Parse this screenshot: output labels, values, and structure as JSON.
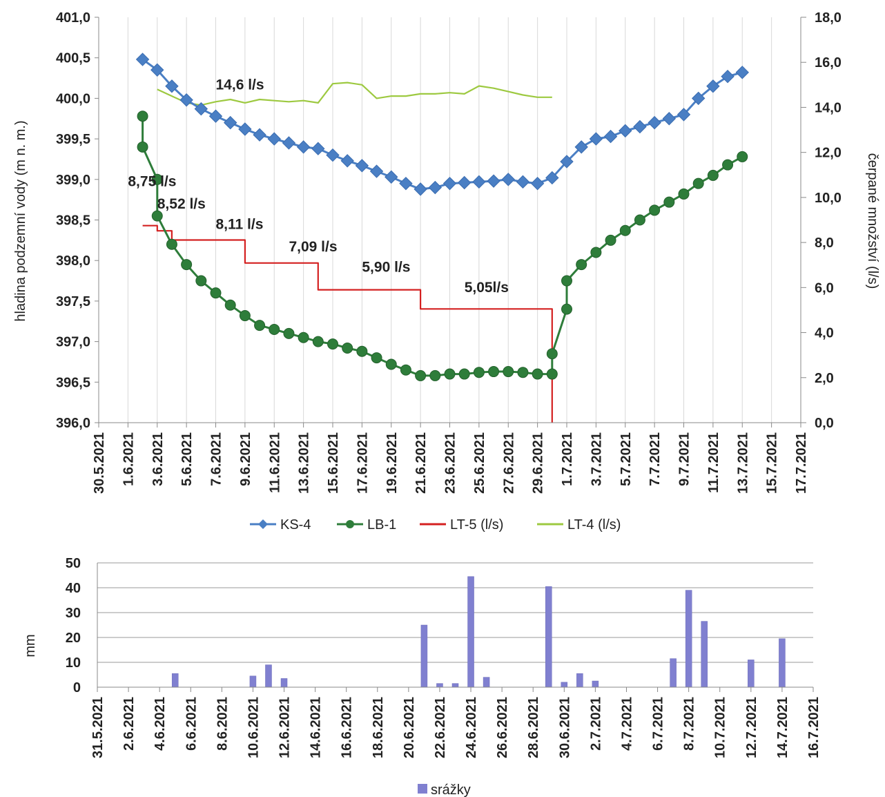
{
  "chart_data": [
    {
      "type": "line",
      "ylabel_left": "hladina podzemní vody (m n. m.)",
      "ylabel_right": "čerpané množství (l/s)",
      "ylim_left": [
        396.0,
        401.0
      ],
      "ylim_right": [
        0.0,
        18.0
      ],
      "yticks_left": [
        "396,0",
        "396,5",
        "397,0",
        "397,5",
        "398,0",
        "398,5",
        "399,0",
        "399,5",
        "400,0",
        "400,5",
        "401,0"
      ],
      "yticks_right": [
        "0,0",
        "2,0",
        "4,0",
        "6,0",
        "8,0",
        "10,0",
        "12,0",
        "14,0",
        "16,0",
        "18,0"
      ],
      "xlim": [
        "30.5.2021",
        "17.7.2021"
      ],
      "xticks": [
        "30.5.2021",
        "1.6.2021",
        "3.6.2021",
        "5.6.2021",
        "7.6.2021",
        "9.6.2021",
        "11.6.2021",
        "13.6.2021",
        "15.6.2021",
        "17.6.2021",
        "19.6.2021",
        "21.6.2021",
        "23.6.2021",
        "25.6.2021",
        "27.6.2021",
        "29.6.2021",
        "1.7.2021",
        "3.7.2021",
        "5.7.2021",
        "7.7.2021",
        "9.7.2021",
        "11.7.2021",
        "13.7.2021",
        "15.7.2021",
        "17.7.2021"
      ],
      "grid": "vertical",
      "legend_position": "bottom",
      "series": [
        {
          "name": "KS-4",
          "axis": "left",
          "color": "#4a7fc4",
          "marker": "diamond",
          "x": [
            "2.6.2021",
            "3.6.2021",
            "4.6.2021",
            "5.6.2021",
            "6.6.2021",
            "7.6.2021",
            "8.6.2021",
            "9.6.2021",
            "10.6.2021",
            "11.6.2021",
            "12.6.2021",
            "13.6.2021",
            "14.6.2021",
            "15.6.2021",
            "16.6.2021",
            "17.6.2021",
            "18.6.2021",
            "19.6.2021",
            "20.6.2021",
            "21.6.2021",
            "22.6.2021",
            "23.6.2021",
            "24.6.2021",
            "25.6.2021",
            "26.6.2021",
            "27.6.2021",
            "28.6.2021",
            "29.6.2021",
            "30.6.2021",
            "1.7.2021",
            "2.7.2021",
            "3.7.2021",
            "4.7.2021",
            "5.7.2021",
            "6.7.2021",
            "7.7.2021",
            "8.7.2021",
            "9.7.2021",
            "10.7.2021",
            "11.7.2021",
            "12.7.2021",
            "13.7.2021"
          ],
          "y": [
            400.48,
            400.35,
            400.15,
            399.98,
            399.87,
            399.78,
            399.7,
            399.62,
            399.55,
            399.5,
            399.45,
            399.4,
            399.38,
            399.3,
            399.23,
            399.17,
            399.1,
            399.03,
            398.95,
            398.88,
            398.9,
            398.95,
            398.96,
            398.97,
            398.98,
            399.0,
            398.97,
            398.95,
            399.02,
            399.22,
            399.4,
            399.5,
            399.53,
            399.6,
            399.65,
            399.7,
            399.75,
            399.8,
            400.0,
            400.15,
            400.27,
            400.32
          ]
        },
        {
          "name": "LB-1",
          "axis": "left",
          "color": "#2e7d3a",
          "marker": "circle",
          "x": [
            "2.6.2021",
            "2.6.2021",
            "3.6.2021",
            "3.6.2021",
            "4.6.2021",
            "5.6.2021",
            "6.6.2021",
            "7.6.2021",
            "8.6.2021",
            "9.6.2021",
            "10.6.2021",
            "11.6.2021",
            "12.6.2021",
            "13.6.2021",
            "14.6.2021",
            "15.6.2021",
            "16.6.2021",
            "17.6.2021",
            "18.6.2021",
            "19.6.2021",
            "20.6.2021",
            "21.6.2021",
            "22.6.2021",
            "23.6.2021",
            "24.6.2021",
            "25.6.2021",
            "26.6.2021",
            "27.6.2021",
            "28.6.2021",
            "29.6.2021",
            "30.6.2021",
            "30.6.2021",
            "1.7.2021",
            "1.7.2021",
            "2.7.2021",
            "3.7.2021",
            "4.7.2021",
            "5.7.2021",
            "6.7.2021",
            "7.7.2021",
            "8.7.2021",
            "9.7.2021",
            "10.7.2021",
            "11.7.2021",
            "12.7.2021",
            "13.7.2021"
          ],
          "y": [
            399.78,
            399.4,
            399.0,
            398.55,
            398.2,
            397.95,
            397.75,
            397.6,
            397.45,
            397.32,
            397.2,
            397.15,
            397.1,
            397.05,
            397.0,
            396.97,
            396.92,
            396.88,
            396.8,
            396.72,
            396.65,
            396.58,
            396.58,
            396.6,
            396.6,
            396.62,
            396.63,
            396.63,
            396.62,
            396.6,
            396.6,
            396.85,
            397.4,
            397.75,
            397.95,
            398.1,
            398.25,
            398.37,
            398.5,
            398.62,
            398.72,
            398.82,
            398.95,
            399.05,
            399.18,
            399.28
          ]
        },
        {
          "name": "LT-5 (l/s)",
          "axis": "right",
          "color": "#d42020",
          "marker": "none",
          "x": [
            "2.6.2021",
            "3.6.2021",
            "3.6.2021",
            "4.6.2021",
            "4.6.2021",
            "9.6.2021",
            "9.6.2021",
            "14.6.2021",
            "14.6.2021",
            "21.6.2021",
            "21.6.2021",
            "30.6.2021",
            "30.6.2021"
          ],
          "y": [
            8.75,
            8.75,
            8.52,
            8.52,
            8.11,
            8.11,
            7.09,
            7.09,
            5.9,
            5.9,
            5.05,
            5.05,
            0.0
          ]
        },
        {
          "name": "LT-4 (l/s)",
          "axis": "right",
          "color": "#9dc940",
          "marker": "none",
          "x": [
            "3.6.2021",
            "4.6.2021",
            "5.6.2021",
            "6.6.2021",
            "7.6.2021",
            "8.6.2021",
            "9.6.2021",
            "10.6.2021",
            "11.6.2021",
            "12.6.2021",
            "13.6.2021",
            "14.6.2021",
            "15.6.2021",
            "16.6.2021",
            "17.6.2021",
            "18.6.2021",
            "19.6.2021",
            "20.6.2021",
            "21.6.2021",
            "22.6.2021",
            "23.6.2021",
            "24.6.2021",
            "25.6.2021",
            "26.6.2021",
            "27.6.2021",
            "28.6.2021",
            "29.6.2021",
            "30.6.2021"
          ],
          "y": [
            14.8,
            14.5,
            14.2,
            14.1,
            14.25,
            14.35,
            14.2,
            14.35,
            14.3,
            14.25,
            14.3,
            14.2,
            15.05,
            15.1,
            15.0,
            14.4,
            14.5,
            14.5,
            14.6,
            14.6,
            14.65,
            14.6,
            14.95,
            14.85,
            14.7,
            14.55,
            14.45,
            14.45
          ]
        }
      ],
      "annotations": [
        {
          "text": "14,6 l/s",
          "x": "7.6.2021",
          "axis": "right",
          "y": 14.8
        },
        {
          "text": "8,75 l/s",
          "x": "1.6.2021",
          "axis": "right",
          "y": 10.5
        },
        {
          "text": "8,52 l/s",
          "x": "3.6.2021",
          "axis": "right",
          "y": 9.5
        },
        {
          "text": "8,11 l/s",
          "x": "7.6.2021",
          "axis": "right",
          "y": 8.6
        },
        {
          "text": "7,09 l/s",
          "x": "12.6.2021",
          "axis": "right",
          "y": 7.6
        },
        {
          "text": "5,90 l/s",
          "x": "17.6.2021",
          "axis": "right",
          "y": 6.7
        },
        {
          "text": "5,05l/s",
          "x": "24.6.2021",
          "axis": "right",
          "y": 5.8
        }
      ]
    },
    {
      "type": "bar",
      "ylabel": "mm",
      "ylim": [
        0,
        50
      ],
      "yticks": [
        "0",
        "10",
        "20",
        "30",
        "40",
        "50"
      ],
      "xlim": [
        "31.5.2021",
        "16.7.2021"
      ],
      "xticks": [
        "31.5.2021",
        "2.6.2021",
        "4.6.2021",
        "6.6.2021",
        "8.6.2021",
        "10.6.2021",
        "12.6.2021",
        "14.6.2021",
        "16.6.2021",
        "18.6.2021",
        "20.6.2021",
        "22.6.2021",
        "24.6.2021",
        "26.6.2021",
        "28.6.2021",
        "30.6.2021",
        "2.7.2021",
        "4.7.2021",
        "6.7.2021",
        "8.7.2021",
        "10.7.2021",
        "12.7.2021",
        "14.7.2021",
        "16.7.2021"
      ],
      "grid": "horizontal",
      "legend_position": "bottom",
      "series": [
        {
          "name": "srážky",
          "color": "#8080d0",
          "x": [
            "5.6.2021",
            "10.6.2021",
            "11.6.2021",
            "12.6.2021",
            "21.6.2021",
            "22.6.2021",
            "23.6.2021",
            "24.6.2021",
            "25.6.2021",
            "29.6.2021",
            "30.6.2021",
            "1.7.2021",
            "2.7.2021",
            "7.7.2021",
            "8.7.2021",
            "9.7.2021",
            "12.7.2021",
            "14.7.2021"
          ],
          "values": [
            5.5,
            4.5,
            9,
            3.5,
            25,
            1.5,
            1.5,
            44.5,
            4,
            40.5,
            2,
            5.5,
            2.5,
            11.5,
            39,
            26.5,
            11,
            19.5
          ]
        }
      ]
    }
  ]
}
